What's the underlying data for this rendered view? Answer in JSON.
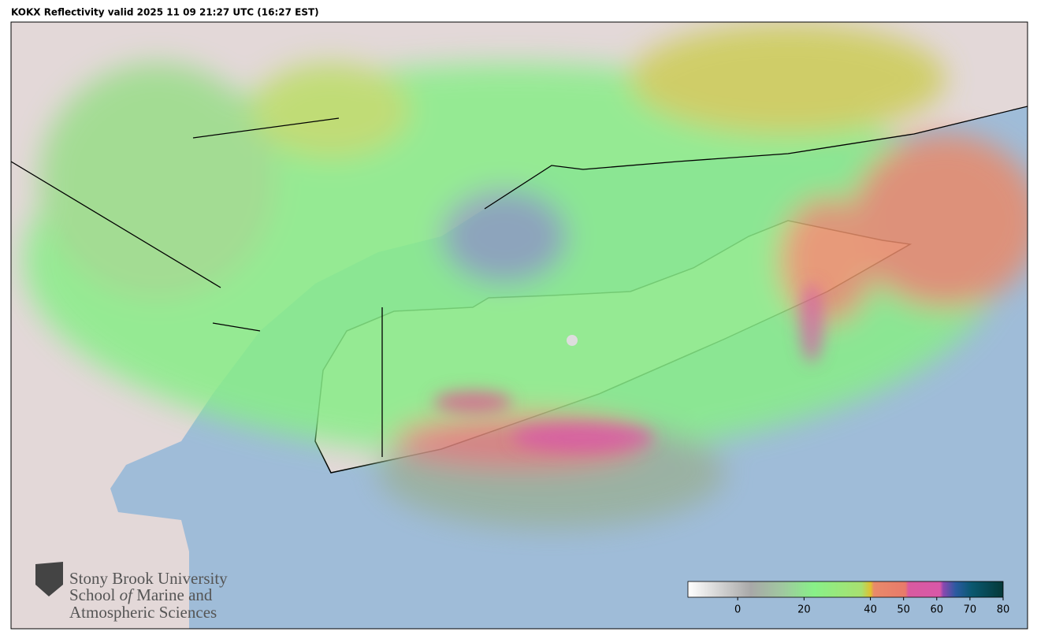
{
  "title": "KOKX Reflectivity valid 2025 11 09 21:27 UTC (16:27 EST)",
  "logo": {
    "line1": "Stony Brook University",
    "line2": [
      "School",
      "of",
      "Marine and"
    ],
    "line3": "Atmospheric Sciences"
  },
  "colorbar": {
    "lim": [
      -15,
      80
    ],
    "ticks": [
      0,
      20,
      40,
      50,
      60,
      70,
      80
    ]
  }
}
